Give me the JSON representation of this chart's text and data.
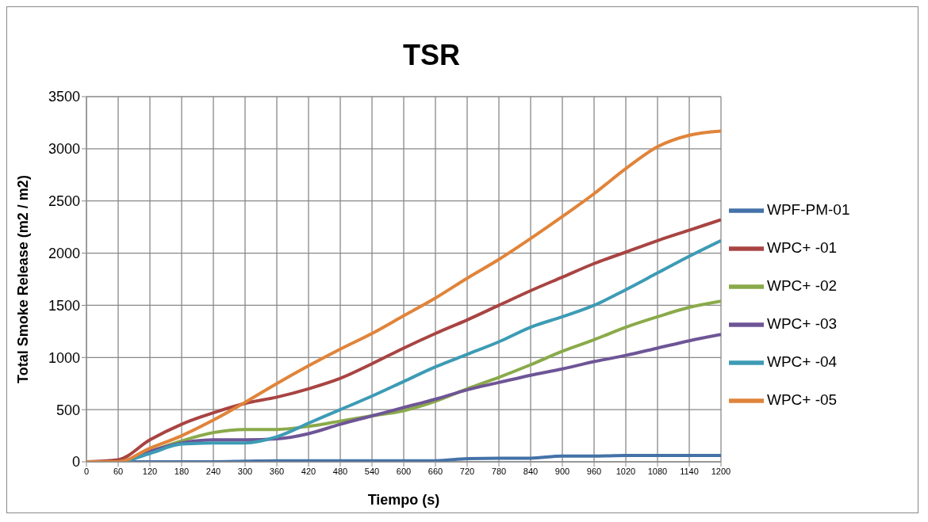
{
  "chart_data": {
    "type": "line",
    "title": "TSR",
    "xlabel": "Tiempo (s)",
    "ylabel": "Total Smoke Release (m2 / m2)",
    "x": [
      0,
      60,
      120,
      180,
      240,
      300,
      360,
      420,
      480,
      540,
      600,
      660,
      720,
      780,
      840,
      900,
      960,
      1020,
      1080,
      1140,
      1200
    ],
    "series": [
      {
        "name": "WPF-PM-01",
        "color": "#4472a8",
        "values": [
          0,
          0,
          0,
          0,
          0,
          5,
          10,
          10,
          10,
          10,
          10,
          10,
          30,
          35,
          35,
          55,
          55,
          60,
          60,
          60,
          60
        ]
      },
      {
        "name": "WPC+ -01",
        "color": "#a84442",
        "values": [
          0,
          20,
          210,
          360,
          470,
          560,
          620,
          700,
          800,
          940,
          1090,
          1230,
          1360,
          1500,
          1640,
          1770,
          1900,
          2010,
          2120,
          2220,
          2320
        ]
      },
      {
        "name": "WPC+ -02",
        "color": "#8aaa4a",
        "values": [
          0,
          0,
          100,
          200,
          280,
          310,
          310,
          340,
          390,
          440,
          490,
          580,
          700,
          810,
          930,
          1060,
          1170,
          1290,
          1390,
          1480,
          1540
        ]
      },
      {
        "name": "WPC+ -03",
        "color": "#6e5596",
        "values": [
          0,
          0,
          100,
          180,
          210,
          210,
          220,
          270,
          360,
          440,
          520,
          600,
          690,
          760,
          830,
          890,
          960,
          1020,
          1090,
          1160,
          1220
        ]
      },
      {
        "name": "WPC+ -04",
        "color": "#3d9bb5",
        "values": [
          0,
          0,
          80,
          170,
          180,
          180,
          240,
          370,
          500,
          630,
          770,
          910,
          1030,
          1150,
          1290,
          1390,
          1500,
          1650,
          1810,
          1970,
          2120
        ]
      },
      {
        "name": "WPC+ -05",
        "color": "#e0843a",
        "values": [
          0,
          0,
          130,
          250,
          400,
          570,
          750,
          920,
          1080,
          1230,
          1400,
          1570,
          1760,
          1940,
          2140,
          2350,
          2570,
          2810,
          3020,
          3130,
          3170
        ]
      }
    ],
    "xlim": [
      0,
      1200
    ],
    "xticks": [
      0,
      60,
      120,
      180,
      240,
      300,
      360,
      420,
      480,
      540,
      600,
      660,
      720,
      780,
      840,
      900,
      960,
      1020,
      1080,
      1140,
      1200
    ],
    "ylim": [
      0,
      3500
    ],
    "yticks": [
      0,
      500,
      1000,
      1500,
      2000,
      2500,
      3000,
      3500
    ],
    "grid": true,
    "legend": "right",
    "marker": "none",
    "line_style": "solid"
  }
}
